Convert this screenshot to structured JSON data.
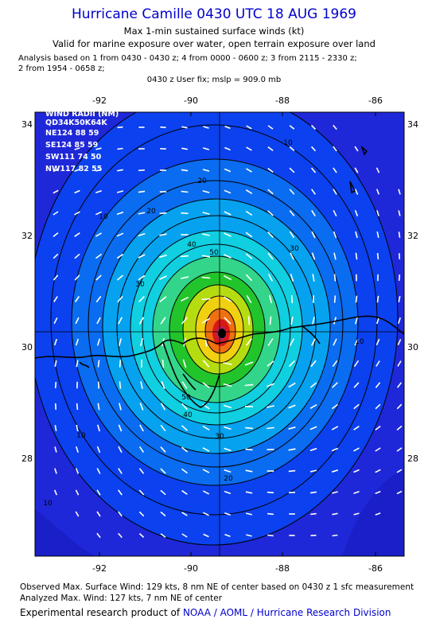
{
  "header": {
    "title": "Hurricane Camille 0430 UTC 18 AUG 1969",
    "subtitle1": "Max 1-min sustained surface winds (kt)",
    "subtitle2": "Valid for marine exposure over water, open terrain exposure over land",
    "analysis_line1": "Analysis based on  1 from 0430 - 0430 z;  4 from 0000 - 0600 z;  3 from 2115 - 2330 z;",
    "analysis_line2": "2 from 1954 - 0658 z;",
    "fix_line": "0430 z User fix; mslp = 909.0 mb"
  },
  "map": {
    "lon_ticks": [
      "-92",
      "-90",
      "-88",
      "-86"
    ],
    "lat_ticks": [
      "34",
      "32",
      "30",
      "28"
    ],
    "contour_labels": [
      "10",
      "10",
      "10",
      "10",
      "10",
      "20",
      "20",
      "20",
      "30",
      "30",
      "30",
      "40",
      "40",
      "50",
      "50"
    ],
    "colors": {
      "water": "#1f28d8",
      "c10": "#0b41ee",
      "c20": "#0a6cf0",
      "c30": "#06a2f0",
      "c40": "#10cfe0",
      "c50": "#33d58a",
      "c60": "#22c42c",
      "c70": "#b5dc10",
      "c80": "#f0d010",
      "c90": "#f07010",
      "c100": "#d81818",
      "c110": "#b02060",
      "center": "#000000"
    },
    "wind_radii": {
      "title": "WIND RADII (NM)",
      "header": "QD34K50K64K",
      "rows": [
        "NE124 88 59",
        "SE124 85 59",
        "SW111 74 50",
        "NW117 82 55"
      ]
    }
  },
  "footer": {
    "observed": "Observed Max. Surface Wind: 129 kts, 8 nm NE of center based on 0430 z 1 sfc measurement",
    "analyzed": "Analyzed Max. Wind: 127 kts, 7 nm NE of center",
    "credit_prefix": "Experimental research product of",
    "credit_link": "NOAA / AOML / Hurricane Research Division"
  }
}
